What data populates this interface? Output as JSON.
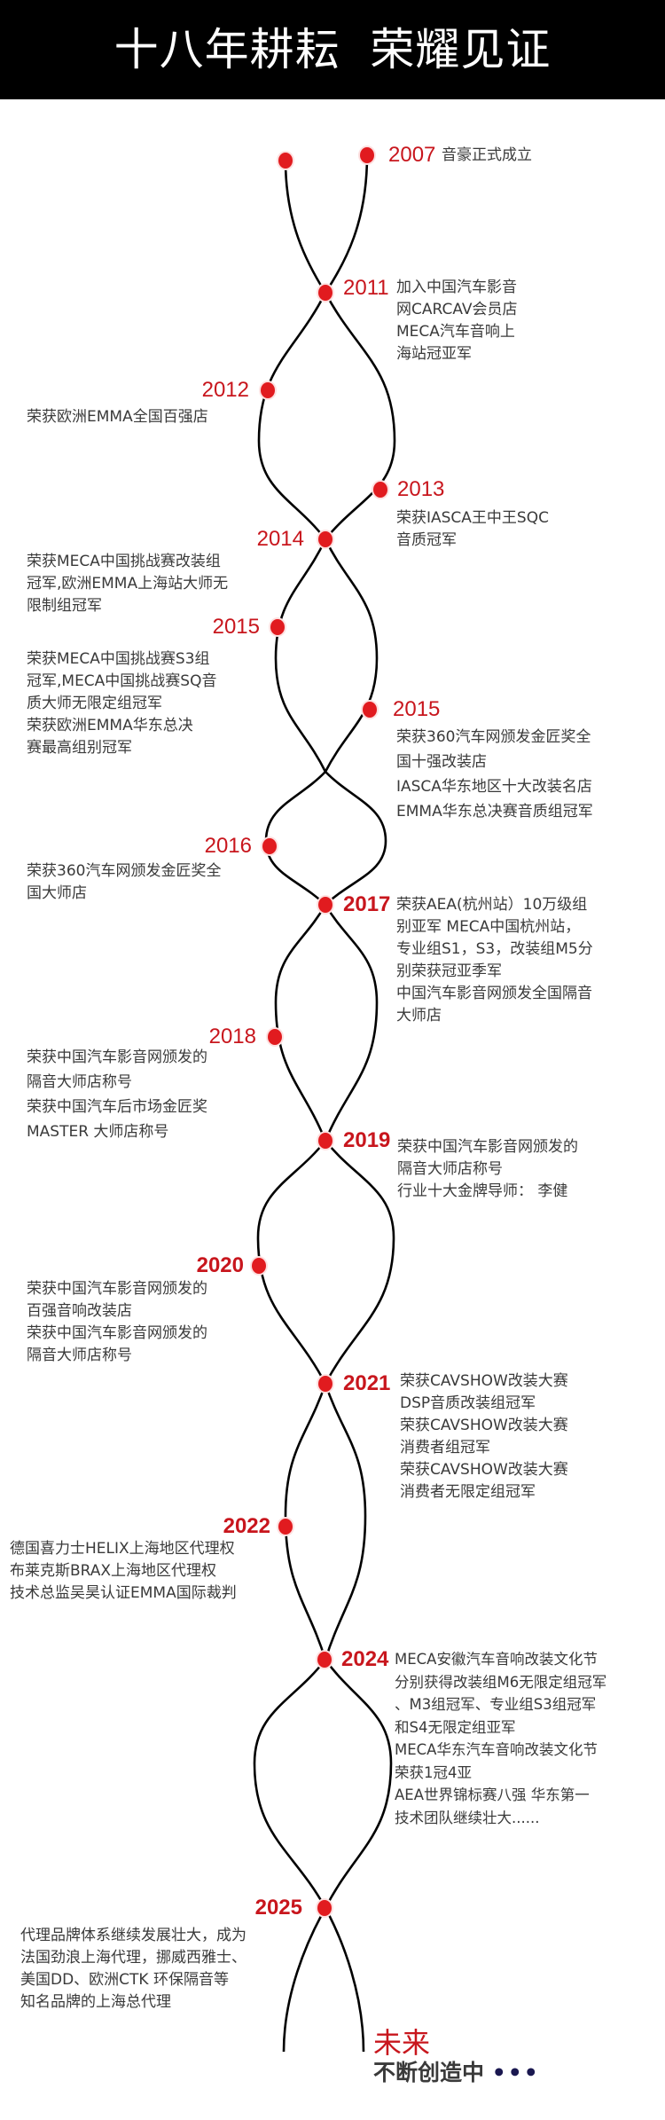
{
  "header": {
    "title": "十八年耕耘  荣耀见证"
  },
  "colors": {
    "accent": "#c8161d",
    "dot": "#e11b1f",
    "text": "#3a3a3a",
    "header_bg": "#000000"
  },
  "timeline": [
    {
      "year": "2007",
      "text": "音豪正式成立"
    },
    {
      "year": "2011",
      "text": "加入中国汽车影音\n网CARCAV会员店\nMECA汽车音响上\n海站冠亚军"
    },
    {
      "year": "2012",
      "text": "荣获欧洲EMMA全国百强店"
    },
    {
      "year": "2013",
      "text": "荣获IASCA王中王SQC\n音质冠军"
    },
    {
      "year": "2014",
      "text": "荣获MECA中国挑战赛改装组\n冠军,欧洲EMMA上海站大师无\n限制组冠军"
    },
    {
      "year": "2015",
      "text": "荣获MECA中国挑战赛S3组\n冠军,MECA中国挑战赛SQ音\n质大师无限定组冠军\n荣获欧洲EMMA华东总决\n赛最高组别冠军"
    },
    {
      "year": "2015",
      "text": "荣获360汽车网颁发金匠奖全\n国十强改装店\nIASCA华东地区十大改装名店\nEMMA华东总决赛音质组冠军"
    },
    {
      "year": "2016",
      "text": "荣获360汽车网颁发金匠奖全\n国大师店"
    },
    {
      "year": "2017",
      "text": "荣获AEA(杭州站）10万级组\n别亚军  MECA中国杭州站，\n专业组S1，S3，改装组M5分\n别荣获冠亚季军\n中国汽车影音网颁发全国隔音\n大师店"
    },
    {
      "year": "2018",
      "text": "荣获中国汽车影音网颁发的\n隔音大师店称号\n荣获中国汽车后市场金匠奖\nMASTER 大师店称号"
    },
    {
      "year": "2019",
      "text": "荣获中国汽车影音网颁发的\n隔音大师店称号\n行业十大金牌导师：  李健"
    },
    {
      "year": "2020",
      "text": "荣获中国汽车影音网颁发的\n百强音响改装店\n荣获中国汽车影音网颁发的\n隔音大师店称号"
    },
    {
      "year": "2021",
      "text": "荣获CAVSHOW改装大赛\nDSP音质改装组冠军\n荣获CAVSHOW改装大赛\n消费者组冠军\n荣获CAVSHOW改装大赛\n消费者无限定组冠军"
    },
    {
      "year": "2022",
      "text": "德国喜力士HELIX上海地区代理权\n布莱克斯BRAX上海地区代理权\n技术总监吴昊认证EMMA国际裁判"
    },
    {
      "year": "2024",
      "text": "MECA安徽汽车音响改装文化节\n分别获得改装组M6无限定组冠军\n、M3组冠军、专业组S3组冠军\n和S4无限定组亚军\nMECA华东汽车音响改装文化节\n荣获1冠4亚\nAEA世界锦标赛八强 华东第一\n技术团队继续壮大......"
    },
    {
      "year": "2025",
      "text": "代理品牌体系继续发展壮大，成为\n法国劲浪上海代理，挪威西雅士、\n美国DD、欧洲CTK 环保隔音等\n知名品牌的上海总代理"
    }
  ],
  "footer": {
    "future": "未来",
    "subtitle": "不断创造中",
    "ellipsis": "•••"
  }
}
